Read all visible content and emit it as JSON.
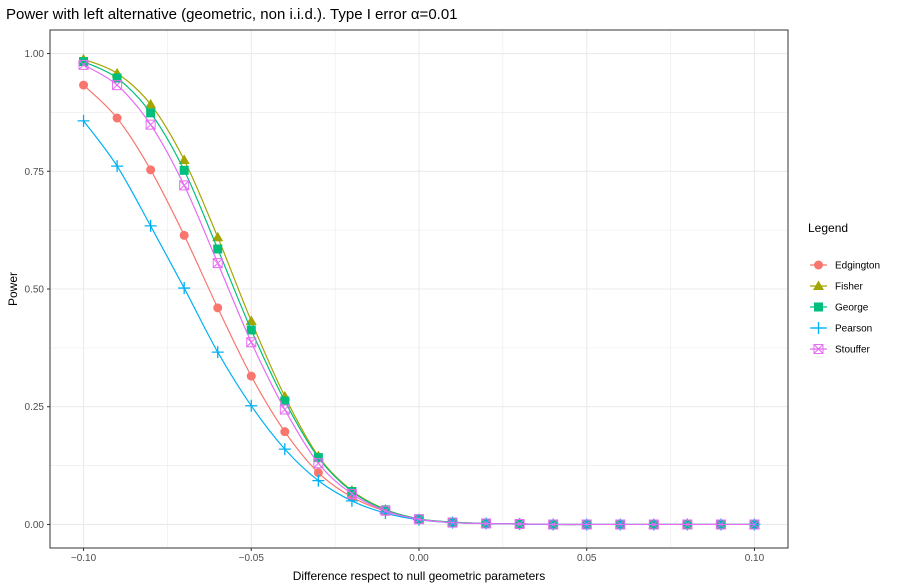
{
  "chart_data": {
    "type": "line",
    "title": "Power with left alternative (geometric, non i.i.d.). Type I error α=0.01",
    "xlabel": "Difference respect to null geometric parameters",
    "ylabel": "Power",
    "xlim": [
      -0.11,
      0.11
    ],
    "ylim": [
      -0.05,
      1.05
    ],
    "x_ticks": [
      -0.1,
      -0.05,
      0.0,
      0.05,
      0.1
    ],
    "x_tick_labels": [
      "−0.10",
      "−0.05",
      "0.00",
      "0.05",
      "0.10"
    ],
    "y_ticks": [
      0.0,
      0.25,
      0.5,
      0.75,
      1.0
    ],
    "y_tick_labels": [
      "0.00",
      "0.25",
      "0.50",
      "0.75",
      "1.00"
    ],
    "grid": true,
    "legend_title": "Legend",
    "legend_position": "right",
    "x": [
      -0.1,
      -0.09,
      -0.08,
      -0.07,
      -0.06,
      -0.05,
      -0.04,
      -0.03,
      -0.02,
      -0.01,
      0.0,
      0.01,
      0.02,
      0.03,
      0.04,
      0.05,
      0.06,
      0.07,
      0.08,
      0.09,
      0.1
    ],
    "series": [
      {
        "name": "Edgington",
        "color": "#F8766D",
        "marker": "circle",
        "values": [
          0.933,
          0.863,
          0.753,
          0.614,
          0.46,
          0.315,
          0.197,
          0.11,
          0.058,
          0.028,
          0.011,
          0.004,
          0.002,
          0.001,
          0.0,
          0.0,
          0.0,
          0.0,
          0.0,
          0.0,
          0.0
        ]
      },
      {
        "name": "Fisher",
        "color": "#A3A500",
        "marker": "triangle",
        "values": [
          0.988,
          0.958,
          0.892,
          0.774,
          0.61,
          0.432,
          0.272,
          0.145,
          0.072,
          0.032,
          0.012,
          0.005,
          0.002,
          0.001,
          0.0,
          0.0,
          0.0,
          0.0,
          0.0,
          0.0,
          0.0
        ]
      },
      {
        "name": "George",
        "color": "#00BF7D",
        "marker": "square",
        "values": [
          0.983,
          0.948,
          0.874,
          0.752,
          0.585,
          0.413,
          0.262,
          0.142,
          0.07,
          0.031,
          0.012,
          0.005,
          0.002,
          0.001,
          0.0,
          0.0,
          0.0,
          0.0,
          0.0,
          0.0,
          0.0
        ]
      },
      {
        "name": "Pearson",
        "color": "#00B0F6",
        "marker": "plus",
        "values": [
          0.857,
          0.761,
          0.634,
          0.502,
          0.366,
          0.252,
          0.16,
          0.093,
          0.05,
          0.024,
          0.01,
          0.004,
          0.002,
          0.001,
          0.0,
          0.0,
          0.0,
          0.0,
          0.0,
          0.0,
          0.0
        ]
      },
      {
        "name": "Stouffer",
        "color": "#E76BF3",
        "marker": "square-x",
        "values": [
          0.976,
          0.933,
          0.849,
          0.72,
          0.555,
          0.387,
          0.244,
          0.13,
          0.065,
          0.029,
          0.011,
          0.004,
          0.002,
          0.001,
          0.0,
          0.0,
          0.0,
          0.0,
          0.0,
          0.0,
          0.0
        ]
      }
    ]
  }
}
